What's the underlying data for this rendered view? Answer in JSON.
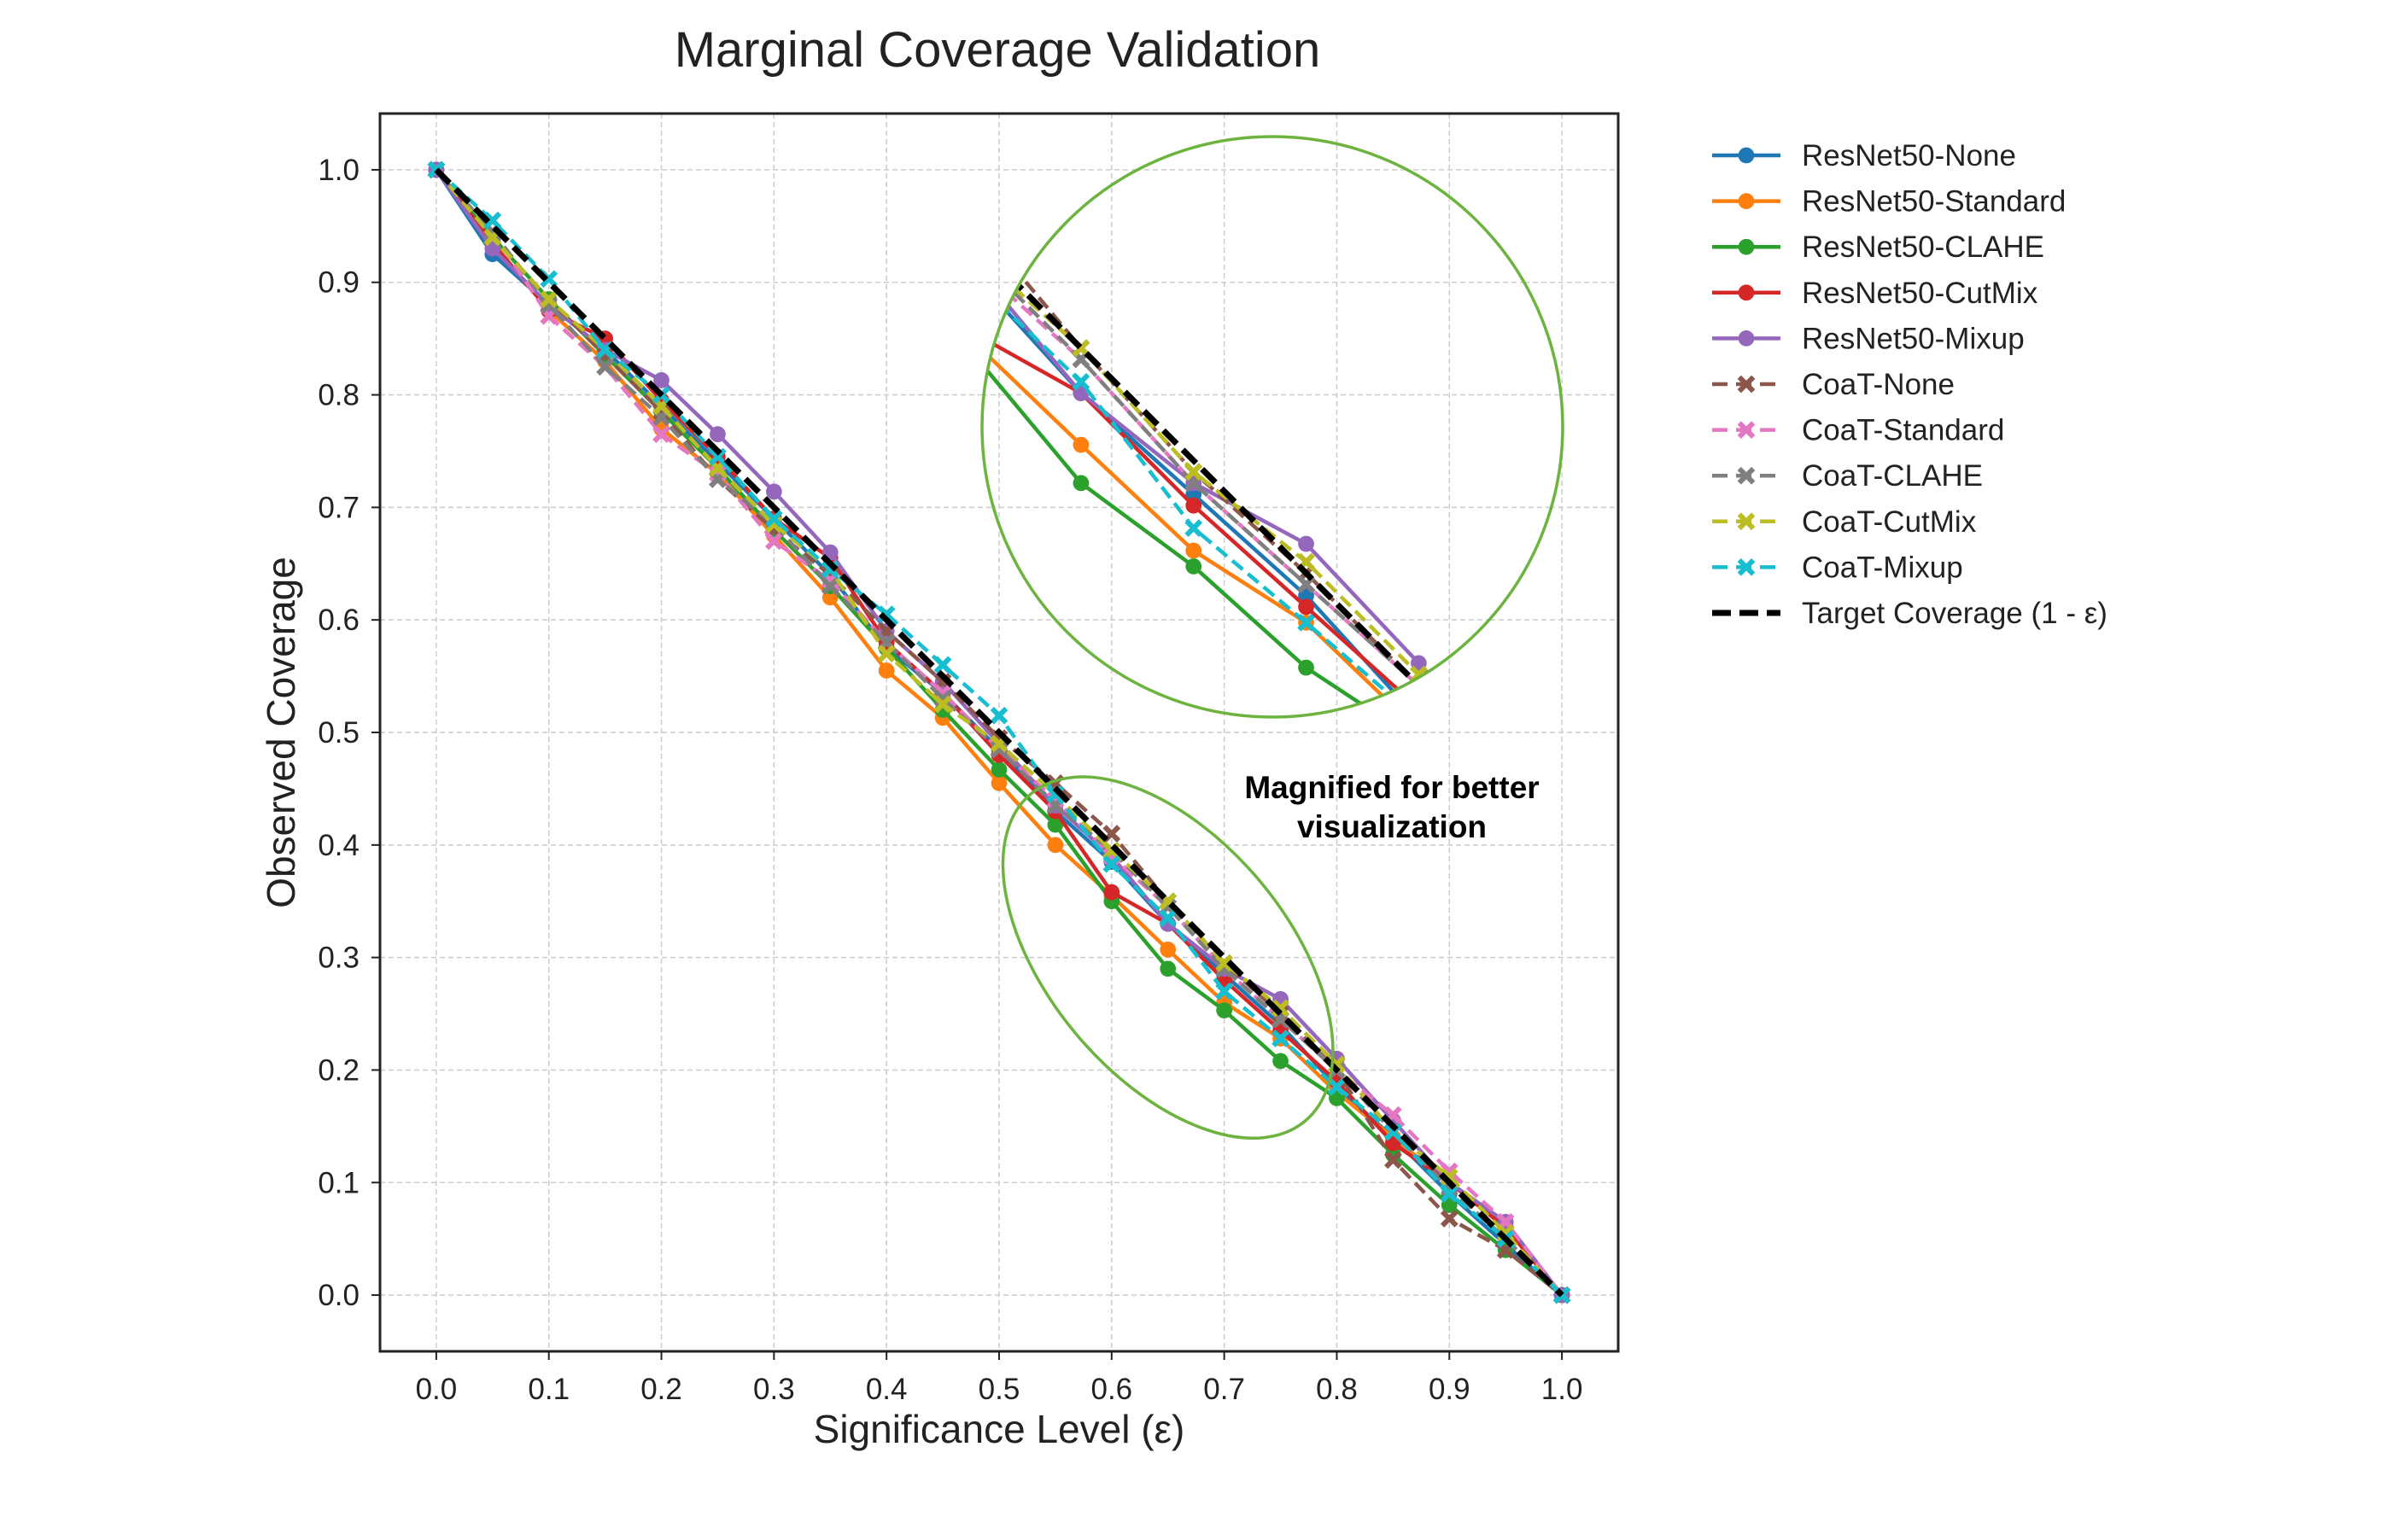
{
  "chart_data": {
    "type": "line",
    "title": "Marginal Coverage Validation",
    "xlabel": "Significance Level (ε)",
    "ylabel": "Observed Coverage",
    "xlim": [
      -0.05,
      1.05
    ],
    "ylim": [
      -0.05,
      1.05
    ],
    "xticks": [
      "0.0",
      "0.1",
      "0.2",
      "0.3",
      "0.4",
      "0.5",
      "0.6",
      "0.7",
      "0.8",
      "0.9",
      "1.0"
    ],
    "yticks": [
      "0.0",
      "0.1",
      "0.2",
      "0.3",
      "0.4",
      "0.5",
      "0.6",
      "0.7",
      "0.8",
      "0.9",
      "1.0"
    ],
    "grid": true,
    "legend_position": "outside-right",
    "x": [
      0.0,
      0.05,
      0.1,
      0.15,
      0.2,
      0.25,
      0.3,
      0.35,
      0.4,
      0.45,
      0.5,
      0.55,
      0.6,
      0.65,
      0.7,
      0.75,
      0.8,
      0.85,
      0.9,
      0.95,
      1.0
    ],
    "series": [
      {
        "name": "ResNet50-None",
        "color": "#1f77b4",
        "style": "solid",
        "marker": "circle",
        "values": [
          1.0,
          0.925,
          0.88,
          0.84,
          0.79,
          0.74,
          0.69,
          0.64,
          0.575,
          0.535,
          0.485,
          0.43,
          0.385,
          0.33,
          0.285,
          0.24,
          0.185,
          0.14,
          0.09,
          0.045,
          0.0
        ]
      },
      {
        "name": "ResNet50-Standard",
        "color": "#ff7f0e",
        "style": "solid",
        "marker": "circle",
        "values": [
          1.0,
          0.935,
          0.875,
          0.83,
          0.77,
          0.73,
          0.675,
          0.62,
          0.555,
          0.513,
          0.455,
          0.4,
          0.355,
          0.307,
          0.26,
          0.228,
          0.18,
          0.14,
          0.1,
          0.06,
          0.0
        ]
      },
      {
        "name": "ResNet50-CLAHE",
        "color": "#2ca02c",
        "style": "solid",
        "marker": "circle",
        "values": [
          1.0,
          0.94,
          0.885,
          0.835,
          0.785,
          0.735,
          0.68,
          0.63,
          0.575,
          0.52,
          0.467,
          0.418,
          0.35,
          0.29,
          0.253,
          0.208,
          0.175,
          0.125,
          0.08,
          0.04,
          0.0
        ]
      },
      {
        "name": "ResNet50-CutMix",
        "color": "#d62728",
        "style": "solid",
        "marker": "circle",
        "values": [
          1.0,
          0.935,
          0.875,
          0.85,
          0.795,
          0.745,
          0.69,
          0.655,
          0.58,
          0.535,
          0.48,
          0.43,
          0.358,
          0.33,
          0.28,
          0.235,
          0.19,
          0.135,
          0.1,
          0.06,
          0.0
        ]
      },
      {
        "name": "ResNet50-Mixup",
        "color": "#9467bd",
        "style": "solid",
        "marker": "circle",
        "values": [
          1.0,
          0.93,
          0.88,
          0.84,
          0.813,
          0.765,
          0.714,
          0.66,
          0.59,
          0.545,
          0.49,
          0.435,
          0.39,
          0.33,
          0.29,
          0.263,
          0.21,
          0.155,
          0.1,
          0.065,
          0.0
        ]
      },
      {
        "name": "CoaT-None",
        "color": "#8c564b",
        "style": "dashed",
        "marker": "x",
        "values": [
          1.0,
          0.94,
          0.885,
          0.835,
          0.785,
          0.725,
          0.68,
          0.64,
          0.59,
          0.545,
          0.495,
          0.455,
          0.41,
          0.35,
          0.295,
          0.25,
          0.2,
          0.12,
          0.068,
          0.04,
          0.0
        ]
      },
      {
        "name": "CoaT-Standard",
        "color": "#e377c2",
        "style": "dashed",
        "marker": "x",
        "values": [
          1.0,
          0.945,
          0.87,
          0.825,
          0.765,
          0.73,
          0.67,
          0.635,
          0.58,
          0.535,
          0.485,
          0.44,
          0.39,
          0.345,
          0.29,
          0.245,
          0.2,
          0.16,
          0.11,
          0.065,
          0.0
        ]
      },
      {
        "name": "CoaT-CLAHE",
        "color": "#7f7f7f",
        "style": "dashed",
        "marker": "x",
        "values": [
          1.0,
          0.945,
          0.88,
          0.825,
          0.78,
          0.725,
          0.685,
          0.63,
          0.58,
          0.53,
          0.485,
          0.435,
          0.395,
          0.345,
          0.29,
          0.245,
          0.2,
          0.145,
          0.095,
          0.05,
          0.0
        ]
      },
      {
        "name": "CoaT-CutMix",
        "color": "#bcbd22",
        "style": "dashed",
        "marker": "x",
        "values": [
          1.0,
          0.94,
          0.885,
          0.84,
          0.79,
          0.735,
          0.685,
          0.645,
          0.57,
          0.525,
          0.49,
          0.445,
          0.395,
          0.35,
          0.295,
          0.255,
          0.205,
          0.145,
          0.105,
          0.055,
          0.0
        ]
      },
      {
        "name": "CoaT-Mixup",
        "color": "#17becf",
        "style": "dashed",
        "marker": "x",
        "values": [
          1.0,
          0.955,
          0.903,
          0.84,
          0.8,
          0.745,
          0.69,
          0.645,
          0.605,
          0.56,
          0.515,
          0.445,
          0.383,
          0.335,
          0.27,
          0.228,
          0.185,
          0.145,
          0.09,
          0.05,
          0.0
        ]
      },
      {
        "name": "Target Coverage (1 - ε)",
        "color": "#000000",
        "style": "target",
        "marker": "none",
        "values": [
          1.0,
          0.95,
          0.9,
          0.85,
          0.8,
          0.75,
          0.7,
          0.65,
          0.6,
          0.55,
          0.5,
          0.45,
          0.4,
          0.35,
          0.3,
          0.25,
          0.2,
          0.15,
          0.1,
          0.05,
          0.0
        ]
      }
    ],
    "annotations": [
      {
        "text": "Magnified for better visualization",
        "lines": [
          "Magnified for better",
          "visualization"
        ]
      }
    ],
    "zoom_color": "#6db33f"
  }
}
